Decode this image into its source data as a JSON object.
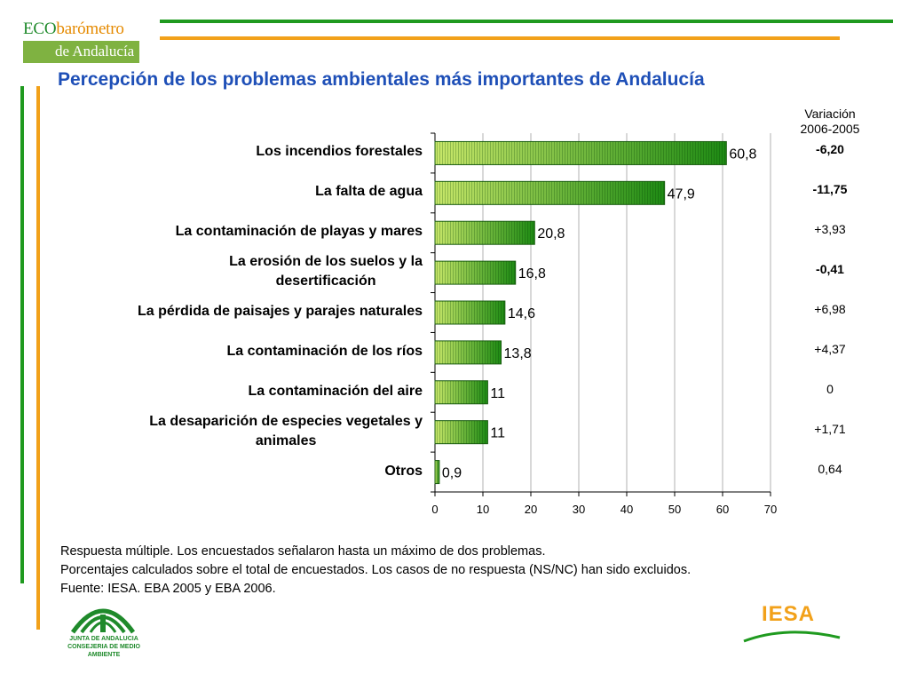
{
  "header": {
    "logo_line1_eco": "ECO",
    "logo_line1_rest": "barómetro",
    "logo_line2": "de Andalucía"
  },
  "title": "Percepción de los problemas ambientales más importantes de Andalucía",
  "variation": {
    "header_line1": "Variación",
    "header_line2": "2006-2005",
    "values": [
      "-6,20",
      "-11,75",
      "+3,93",
      "-0,41",
      "+6,98",
      "+4,37",
      "0",
      "+1,71",
      "0,64"
    ],
    "bold": [
      true,
      true,
      false,
      true,
      false,
      false,
      false,
      false,
      false
    ]
  },
  "chart_data": {
    "type": "bar",
    "orientation": "horizontal",
    "categories": [
      "Los incendios forestales",
      "La falta de agua",
      "La contaminación de playas y mares",
      "La erosión de los suelos y la desertificación",
      "La pérdida de paisajes y parajes naturales",
      "La contaminación de los ríos",
      "La contaminación del aire",
      "La desaparición de especies vegetales y animales",
      "Otros"
    ],
    "category_lines": [
      [
        "Los incendios forestales"
      ],
      [
        "La falta de agua"
      ],
      [
        "La contaminación de playas y mares"
      ],
      [
        "La erosión de los suelos y la",
        "desertificación"
      ],
      [
        "La pérdida de paisajes y parajes naturales"
      ],
      [
        "La contaminación de los ríos"
      ],
      [
        "La contaminación del aire"
      ],
      [
        "La desaparición de especies vegetales y",
        "animales"
      ],
      [
        "Otros"
      ]
    ],
    "values": [
      60.8,
      47.9,
      20.8,
      16.8,
      14.6,
      13.8,
      11,
      11,
      0.9
    ],
    "value_labels": [
      "60,8",
      "47,9",
      "20,8",
      "16,8",
      "14,6",
      "13,8",
      "11",
      "11",
      "0,9"
    ],
    "xlim": [
      0,
      70
    ],
    "xticks": [
      0,
      10,
      20,
      30,
      40,
      50,
      60,
      70
    ],
    "grid": true,
    "bar_color": "#1e8a14",
    "bar_color_light": "#c9e86a"
  },
  "notes": {
    "line1": "Respuesta múltiple. Los encuestados señalaron hasta un máximo de dos problemas.",
    "line2": "Porcentajes calculados sobre el total de encuestados. Los casos de no respuesta (NS/NC) han sido excluidos.",
    "line3": "Fuente: IESA. EBA 2005 y EBA 2006."
  },
  "footer": {
    "junta_line1": "JUNTA DE ANDALUCIA",
    "junta_line2": "CONSEJERIA DE MEDIO AMBIENTE",
    "iesa": "IESA"
  }
}
